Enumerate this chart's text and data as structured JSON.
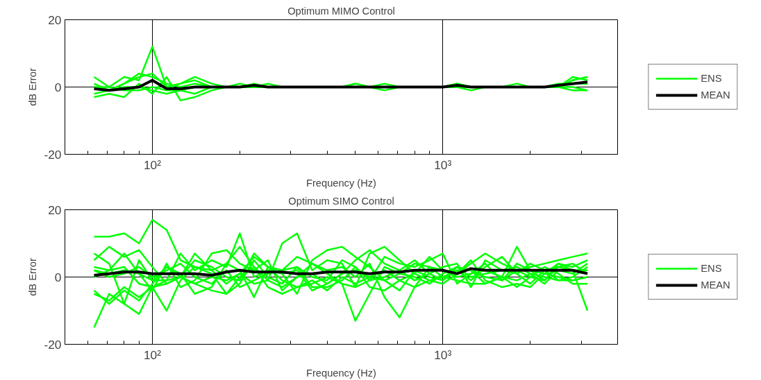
{
  "chart_data": [
    {
      "type": "line",
      "title": "Optimum MIMO Control",
      "xlabel": "Frequency (Hz)",
      "ylabel": "dB Error",
      "log": "x",
      "grid": true,
      "legend": "right",
      "line_style": "solid",
      "marker": "none",
      "xlim": [
        50,
        4000
      ],
      "ylim": [
        -20,
        20
      ],
      "yticks": [
        -20,
        0,
        20
      ],
      "xticks": [
        {
          "value": 60,
          "label": null
        },
        {
          "value": 70,
          "label": null
        },
        {
          "value": 80,
          "label": null
        },
        {
          "value": 90,
          "label": null
        },
        {
          "value": 100,
          "label": "10²"
        },
        {
          "value": 200,
          "label": null
        },
        {
          "value": 300,
          "label": null
        },
        {
          "value": 400,
          "label": null
        },
        {
          "value": 500,
          "label": null
        },
        {
          "value": 600,
          "label": null
        },
        {
          "value": 700,
          "label": null
        },
        {
          "value": 800,
          "label": null
        },
        {
          "value": 900,
          "label": null
        },
        {
          "value": 1000,
          "label": "10³"
        },
        {
          "value": 2000,
          "label": null
        },
        {
          "value": 3000,
          "label": null
        }
      ],
      "x": [
        63,
        71,
        80,
        90,
        100,
        112,
        125,
        140,
        160,
        180,
        200,
        224,
        250,
        280,
        315,
        355,
        400,
        450,
        500,
        560,
        630,
        710,
        800,
        900,
        1000,
        1120,
        1250,
        1400,
        1600,
        1800,
        2000,
        2240,
        2500,
        2800,
        3150
      ],
      "series": [
        {
          "name": "ENS",
          "color": "#00ff00",
          "values": [
            3,
            0,
            3,
            2,
            12,
            0,
            1,
            3,
            1,
            0,
            0,
            0,
            0,
            0,
            0,
            0,
            0,
            0,
            0,
            0,
            0,
            0,
            0,
            0,
            0,
            0,
            0,
            0,
            0,
            0,
            0,
            0,
            0,
            2,
            3
          ]
        },
        {
          "color": "#00ff00",
          "values": [
            -3,
            -2,
            -3,
            1,
            -2,
            3,
            -4,
            -3,
            -1,
            0,
            0,
            0,
            0,
            0,
            0,
            0,
            0,
            0,
            1,
            0,
            0,
            0,
            0,
            0,
            0,
            1,
            0,
            0,
            0,
            0,
            0,
            0,
            0,
            0,
            -1
          ]
        },
        {
          "color": "#00ff00",
          "values": [
            0,
            -1,
            1,
            4,
            3,
            1,
            0,
            1,
            0,
            0,
            0,
            1,
            0,
            0,
            0,
            0,
            0,
            0,
            0,
            0,
            0,
            0,
            0,
            0,
            0,
            1,
            0,
            0,
            0,
            0,
            0,
            0,
            0,
            3,
            2
          ]
        },
        {
          "color": "#00ff00",
          "values": [
            -2,
            -1,
            0,
            0,
            -1,
            -2,
            -1,
            -2,
            0,
            0,
            0,
            0,
            0,
            0,
            0,
            0,
            0,
            0,
            0,
            0,
            -1,
            0,
            0,
            0,
            0,
            0,
            -1,
            0,
            0,
            0,
            0,
            0,
            0,
            -1,
            -1
          ]
        },
        {
          "color": "#00ff00",
          "values": [
            1,
            -1,
            1,
            3,
            4,
            0,
            1,
            2,
            0,
            0,
            1,
            0,
            1,
            0,
            0,
            0,
            0,
            0,
            0,
            0,
            1,
            0,
            0,
            0,
            0,
            1,
            0,
            0,
            0,
            0,
            0,
            0,
            0,
            2,
            3
          ]
        },
        {
          "color": "#00ff00",
          "values": [
            0,
            0,
            -1,
            -1,
            0,
            -1,
            -1,
            0,
            0,
            0,
            0,
            0,
            0,
            0,
            0,
            0,
            0,
            0,
            1,
            0,
            0,
            0,
            0,
            0,
            0,
            0,
            0,
            0,
            0,
            1,
            0,
            0,
            1,
            1,
            1
          ]
        },
        {
          "name": "MEAN",
          "color": "#000000",
          "values": [
            -0.5,
            -1,
            -0.5,
            0,
            2,
            -0.5,
            -0.5,
            0,
            0,
            0,
            0,
            0.5,
            0,
            0,
            0,
            0,
            0,
            0,
            0,
            0,
            0,
            0,
            0,
            0,
            0,
            0.5,
            0,
            0,
            0,
            0,
            0,
            0,
            0.5,
            1,
            1.5
          ]
        }
      ]
    },
    {
      "type": "line",
      "title": "Optimum SIMO Control",
      "xlabel": "Frequency (Hz)",
      "ylabel": "dB Error",
      "log": "x",
      "grid": true,
      "legend": "right",
      "line_style": "solid",
      "marker": "none",
      "xlim": [
        50,
        4000
      ],
      "ylim": [
        -20,
        20
      ],
      "yticks": [
        -20,
        0,
        20
      ],
      "xticks": [
        {
          "value": 60,
          "label": null
        },
        {
          "value": 70,
          "label": null
        },
        {
          "value": 80,
          "label": null
        },
        {
          "value": 90,
          "label": null
        },
        {
          "value": 100,
          "label": "10²"
        },
        {
          "value": 200,
          "label": null
        },
        {
          "value": 300,
          "label": null
        },
        {
          "value": 400,
          "label": null
        },
        {
          "value": 500,
          "label": null
        },
        {
          "value": 600,
          "label": null
        },
        {
          "value": 700,
          "label": null
        },
        {
          "value": 800,
          "label": null
        },
        {
          "value": 900,
          "label": null
        },
        {
          "value": 1000,
          "label": "10³"
        },
        {
          "value": 2000,
          "label": null
        },
        {
          "value": 3000,
          "label": null
        }
      ],
      "x": [
        63,
        71,
        80,
        90,
        100,
        112,
        125,
        140,
        160,
        180,
        200,
        224,
        250,
        280,
        315,
        355,
        400,
        450,
        500,
        560,
        630,
        710,
        800,
        900,
        1000,
        1120,
        1250,
        1400,
        1600,
        1800,
        2000,
        2240,
        2500,
        2800,
        3150
      ],
      "series": [
        {
          "name": "ENS",
          "color": "#00ff00",
          "values": [
            12,
            12,
            13,
            10,
            17,
            14,
            5,
            3,
            2,
            -2,
            1,
            6,
            3,
            -1,
            -3,
            -2,
            0,
            -2,
            -13,
            -5,
            3,
            1,
            4,
            3,
            2,
            0,
            1,
            4,
            -1,
            2,
            3,
            4,
            5,
            6,
            7
          ]
        },
        {
          "color": "#00ff00",
          "values": [
            5,
            9,
            6,
            8,
            3,
            -2,
            0,
            7,
            2,
            4,
            9,
            3,
            -1,
            10,
            13,
            2,
            5,
            4,
            -3,
            -1,
            6,
            4,
            3,
            5,
            7,
            -2,
            1,
            2,
            0,
            9,
            2,
            1,
            4,
            3,
            5
          ]
        },
        {
          "color": "#00ff00",
          "values": [
            -4,
            -8,
            -4,
            -7,
            -2,
            3,
            1,
            -5,
            -3,
            4,
            2,
            -6,
            3,
            1,
            2,
            -4,
            -2,
            1,
            5,
            8,
            4,
            2,
            -1,
            1,
            3,
            4,
            -3,
            5,
            2,
            1,
            -2,
            2,
            3,
            4,
            1
          ]
        },
        {
          "color": "#00ff00",
          "values": [
            -15,
            -5,
            -8,
            -11,
            -3,
            -1,
            7,
            2,
            5,
            3,
            13,
            0,
            2,
            1,
            -5,
            5,
            8,
            9,
            6,
            3,
            -1,
            -4,
            2,
            0,
            -1,
            3,
            2,
            0,
            -1,
            4,
            2,
            -1,
            4,
            2,
            -10
          ]
        },
        {
          "color": "#00ff00",
          "values": [
            3,
            2,
            3,
            -2,
            -3,
            -10,
            -1,
            3,
            1,
            -5,
            -2,
            5,
            0,
            -2,
            3,
            -3,
            -3,
            -1,
            3,
            -3,
            -4,
            -1,
            1,
            -1,
            -2,
            1,
            5,
            -1,
            -3,
            -2,
            -3,
            1,
            0,
            -1,
            0
          ]
        },
        {
          "color": "#00ff00",
          "values": [
            0,
            2,
            7,
            1,
            -4,
            4,
            -3,
            -1,
            7,
            8,
            4,
            2,
            5,
            -4,
            0,
            4,
            1,
            -2,
            -3,
            7,
            9,
            5,
            1,
            6,
            2,
            1,
            4,
            7,
            4,
            2,
            0,
            -1,
            3,
            2,
            2
          ]
        },
        {
          "color": "#00ff00",
          "values": [
            -5,
            -7,
            -3,
            -6,
            -3,
            -2,
            0,
            -2,
            -4,
            -5,
            0,
            3,
            -3,
            -5,
            -3,
            -1,
            -4,
            0,
            -2,
            0,
            2,
            -1,
            -3,
            -1,
            0,
            -1,
            -2,
            -2,
            0,
            -3,
            0,
            3,
            1,
            -2,
            -2
          ]
        },
        {
          "color": "#00ff00",
          "values": [
            2,
            0,
            1,
            3,
            0,
            2,
            4,
            0,
            -2,
            2,
            -3,
            -1,
            1,
            2,
            3,
            0,
            -1,
            5,
            3,
            -1,
            0,
            2,
            5,
            1,
            -1,
            2,
            -1,
            3,
            6,
            1,
            4,
            2,
            -1,
            0,
            3
          ]
        },
        {
          "color": "#00ff00",
          "values": [
            7,
            4,
            -8,
            5,
            -1,
            -1,
            0,
            5,
            3,
            0,
            -1,
            7,
            3,
            2,
            6,
            4,
            2,
            3,
            0,
            4,
            -6,
            -12,
            -3,
            3,
            0,
            2,
            2,
            -2,
            0,
            -1,
            1,
            -2,
            2,
            1,
            4
          ]
        },
        {
          "color": "#00ff00",
          "values": [
            2,
            1,
            2,
            1,
            -1,
            3,
            0,
            -2,
            0,
            -1,
            1,
            -2,
            -1,
            -3,
            0,
            1,
            -2,
            1,
            2,
            0,
            -1,
            1,
            0,
            -2,
            1,
            3,
            0,
            1,
            2,
            3,
            1,
            0,
            -1,
            -1,
            0
          ]
        },
        {
          "name": "MEAN",
          "color": "#000000",
          "values": [
            0.5,
            1,
            1.5,
            1.5,
            1,
            1,
            1,
            1,
            0.5,
            1.5,
            2,
            1.5,
            1.5,
            1.5,
            1,
            1,
            1.5,
            1.5,
            1.5,
            1,
            1.5,
            1.5,
            2,
            2,
            2,
            1,
            2.5,
            2,
            2,
            2,
            2,
            2,
            2,
            2,
            1
          ]
        }
      ]
    }
  ]
}
